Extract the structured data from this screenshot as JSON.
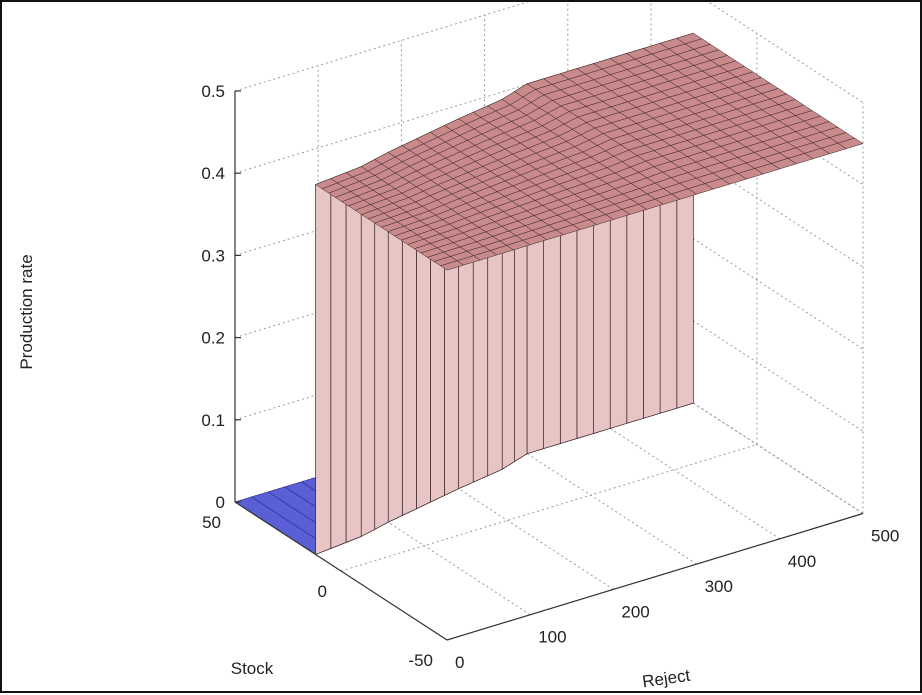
{
  "chart_data": {
    "type": "surface3d",
    "title": "",
    "xlabel": "Reject",
    "ylabel": "Stock",
    "zlabel": "Production rate",
    "x_ticks": [
      0,
      100,
      200,
      300,
      400,
      500
    ],
    "y_ticks": [
      -50,
      0,
      50
    ],
    "z_ticks": [
      0,
      0.1,
      0.2,
      0.3,
      0.4,
      0.5
    ],
    "x_tick_labels": [
      "0",
      "100",
      "200",
      "300",
      "400",
      "500"
    ],
    "y_tick_labels": [
      "-50",
      "0",
      "50"
    ],
    "z_tick_labels": [
      "0",
      "0.1",
      "0.2",
      "0.3",
      "0.4",
      "0.5"
    ],
    "xlim": [
      0,
      500
    ],
    "ylim": [
      -50,
      50
    ],
    "zlim": [
      0,
      0.5
    ],
    "grid": true,
    "surface": {
      "description_of_levels": [
        {
          "region": "stock above threshold",
          "production_rate": 0
        },
        {
          "region": "stock below threshold",
          "production_rate": 0.45
        }
      ],
      "threshold_stock": [
        {
          "reject": 0,
          "stock": 12
        },
        {
          "reject": 60,
          "stock": 14
        },
        {
          "reject": 100,
          "stock": 17
        },
        {
          "reject": 150,
          "stock": 20
        },
        {
          "reject": 200,
          "stock": 23
        },
        {
          "reject": 260,
          "stock": 26
        },
        {
          "reject": 300,
          "stock": 30
        },
        {
          "reject": 500,
          "stock": 30
        }
      ],
      "high_rate": 0.45,
      "low_rate": 0,
      "colors": {
        "high_face": "#c98a8c",
        "wall_face": "#e8c5c5",
        "low_face": "#5b5fd6",
        "mesh_line": "#3a2323"
      }
    }
  }
}
